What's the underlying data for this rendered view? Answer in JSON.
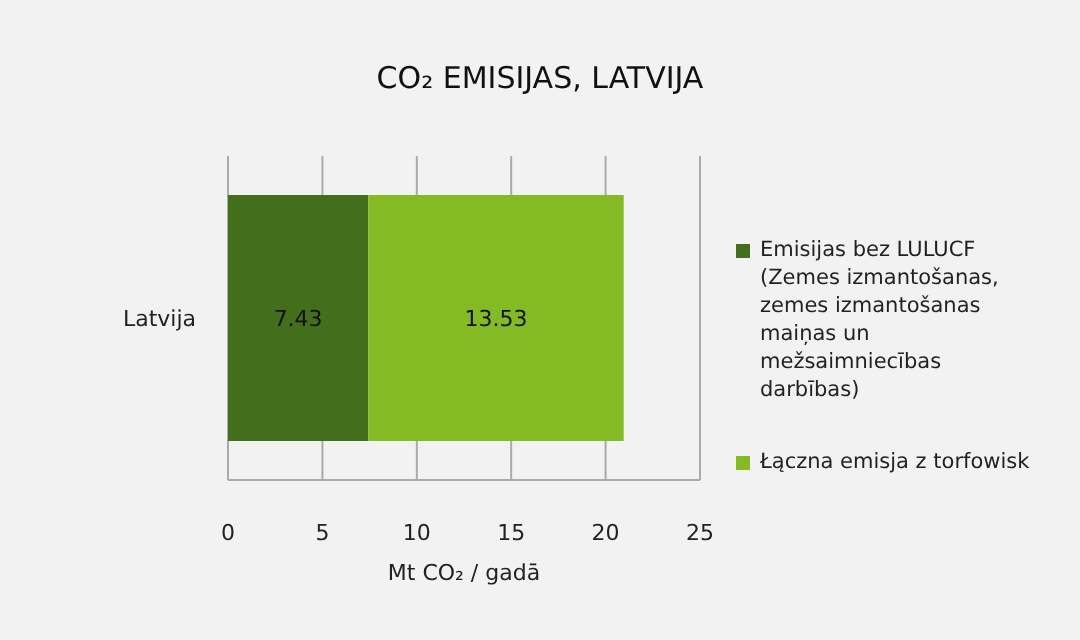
{
  "chart_data": {
    "type": "bar",
    "orientation": "horizontal",
    "stacked": true,
    "title": "CO₂ EMISIJAS, LATVIJA",
    "xlabel": "Mt CO₂ / gadā",
    "categories": [
      "Latvija"
    ],
    "series": [
      {
        "name": "Emisijas bez LULUCF (Zemes izmantošanas, zemes izmantošanas maiņas un mežsaimniecības darbības)",
        "color": "#436e1c",
        "values": [
          7.43
        ]
      },
      {
        "name": "Łączna emisja z torfowisk",
        "color": "#84bb24",
        "values": [
          13.53
        ]
      }
    ],
    "xlim": [
      0,
      25
    ],
    "xticks": [
      0,
      5,
      10,
      15,
      20,
      25
    ],
    "grid": "x",
    "legend": "right",
    "data_labels": true
  }
}
